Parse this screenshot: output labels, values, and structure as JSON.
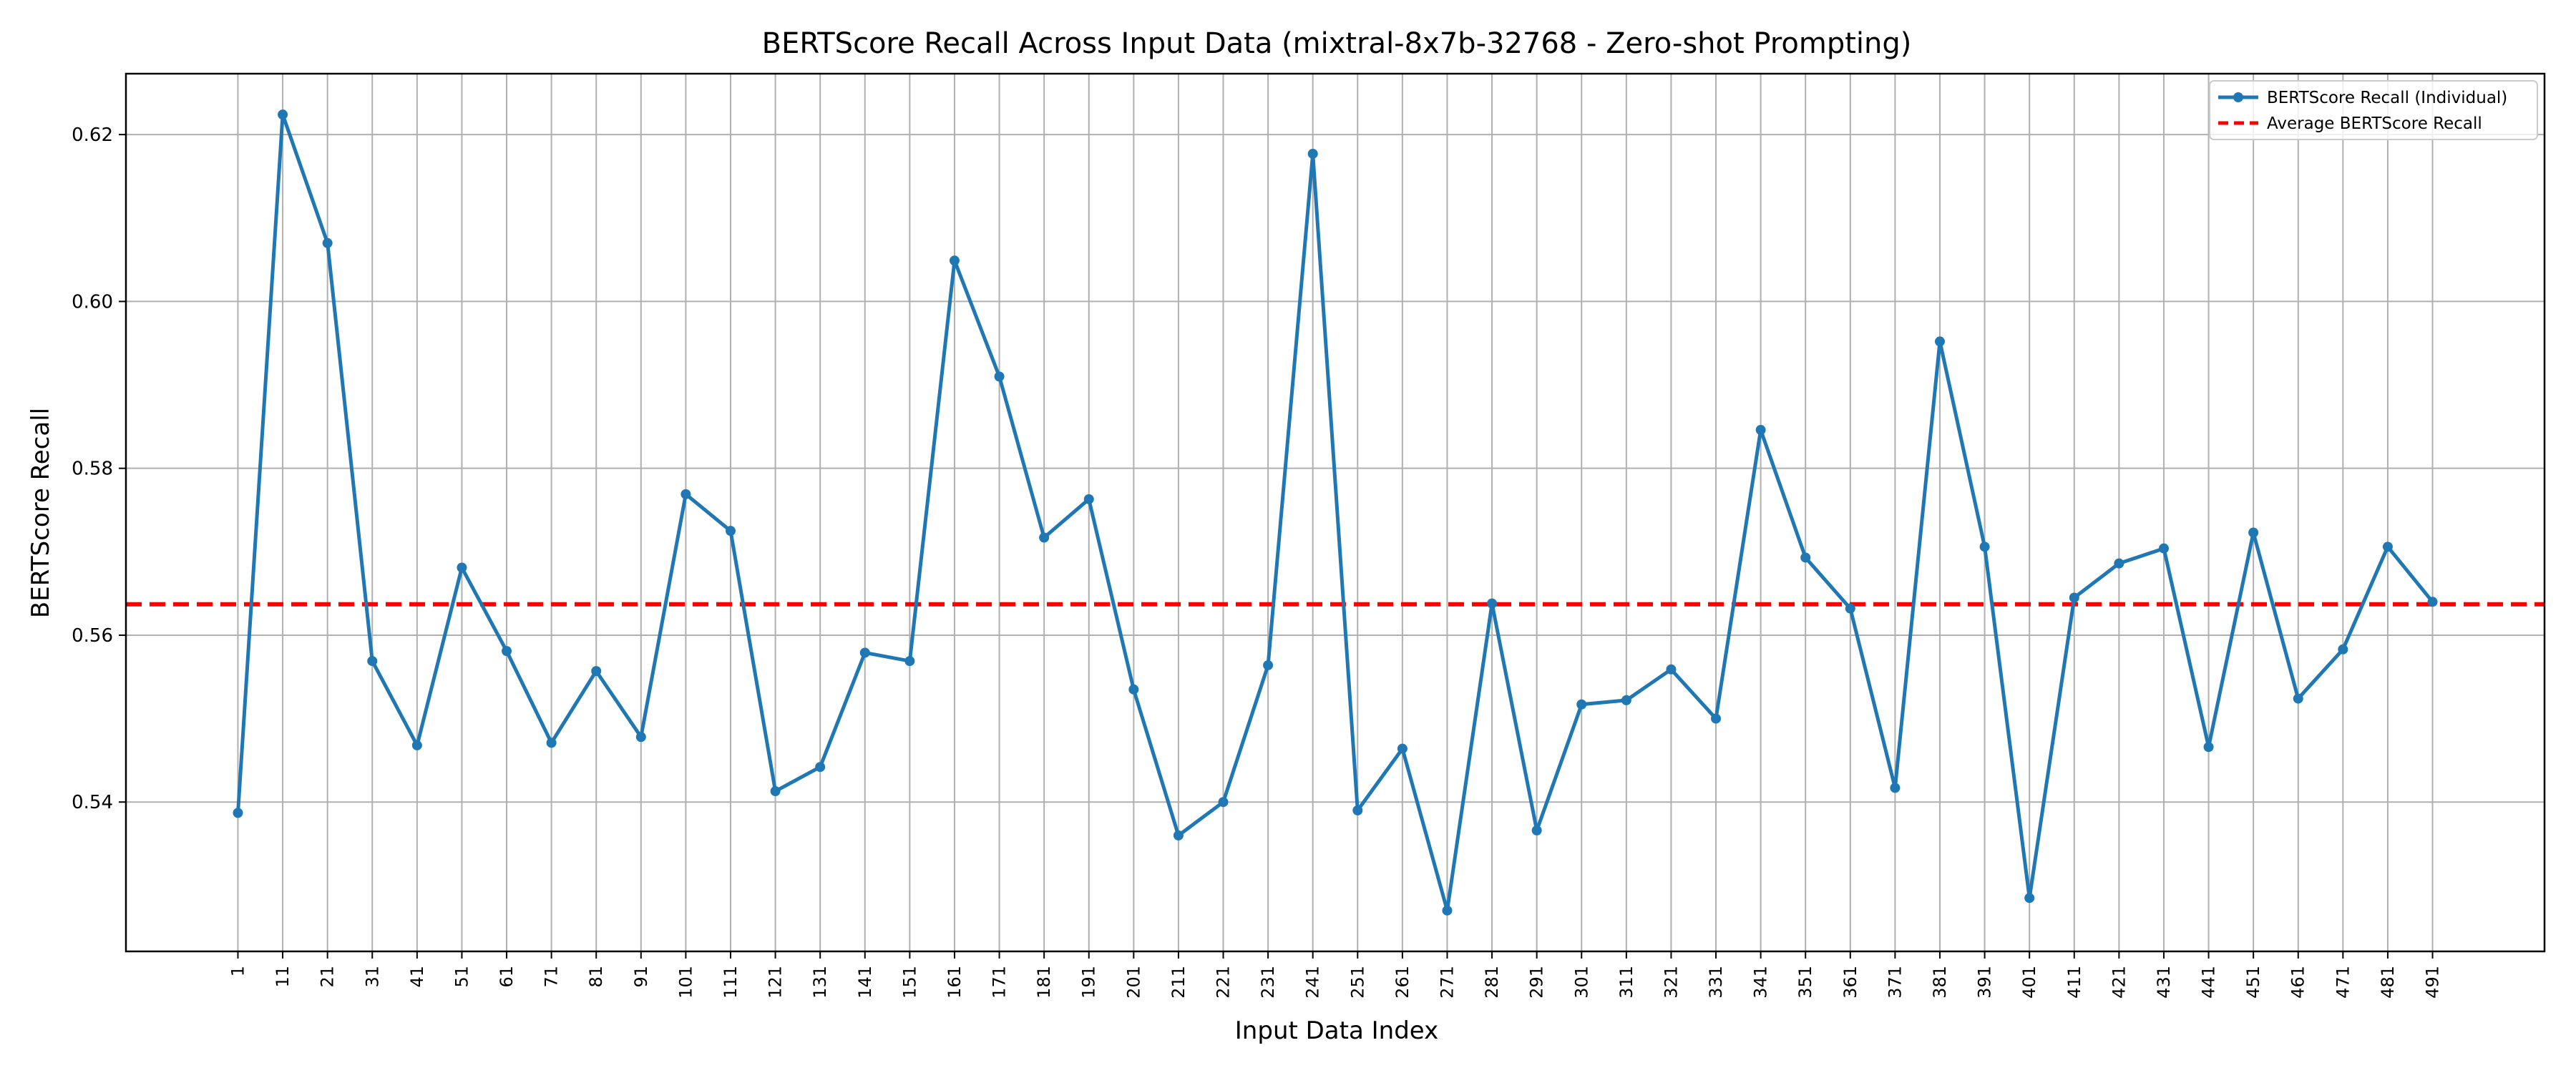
{
  "chart_data": {
    "type": "line",
    "title": "BERTScore Recall Across Input Data (mixtral-8x7b-32768 - Zero-shot Prompting)",
    "xlabel": "Input Data Index",
    "ylabel": "BERTScore Recall",
    "x": [
      1,
      11,
      21,
      31,
      41,
      51,
      61,
      71,
      81,
      91,
      101,
      111,
      121,
      131,
      141,
      151,
      161,
      171,
      181,
      191,
      201,
      211,
      221,
      231,
      241,
      251,
      261,
      271,
      281,
      291,
      301,
      311,
      321,
      331,
      341,
      351,
      361,
      371,
      381,
      391,
      401,
      411,
      421,
      431,
      441,
      451,
      461,
      471,
      481,
      491
    ],
    "xticks": [
      "1",
      "11",
      "21",
      "31",
      "41",
      "51",
      "61",
      "71",
      "81",
      "91",
      "101",
      "111",
      "121",
      "131",
      "141",
      "151",
      "161",
      "171",
      "181",
      "191",
      "201",
      "211",
      "221",
      "231",
      "241",
      "251",
      "261",
      "271",
      "281",
      "291",
      "301",
      "311",
      "321",
      "331",
      "341",
      "351",
      "361",
      "371",
      "381",
      "391",
      "401",
      "411",
      "421",
      "431",
      "441",
      "451",
      "461",
      "471",
      "481",
      "491"
    ],
    "yticks": [
      "0.54",
      "0.56",
      "0.58",
      "0.60",
      "0.62"
    ],
    "ytick_values": [
      0.54,
      0.56,
      0.58,
      0.6,
      0.62
    ],
    "xlim": [
      -24,
      516
    ],
    "ylim": [
      0.5221,
      0.6273
    ],
    "grid": true,
    "legend_position": "top-right",
    "series": [
      {
        "name": "BERTScore Recall (Individual)",
        "color": "#1f77b4",
        "style": "line-marker",
        "values": [
          0.5387,
          0.6224,
          0.607,
          0.5569,
          0.5468,
          0.5681,
          0.5581,
          0.5471,
          0.5557,
          0.5478,
          0.5769,
          0.5725,
          0.5413,
          0.5442,
          0.5579,
          0.5569,
          0.6049,
          0.591,
          0.5717,
          0.5763,
          0.5535,
          0.536,
          0.54,
          0.5564,
          0.6177,
          0.539,
          0.5464,
          0.527,
          0.5638,
          0.5366,
          0.5517,
          0.5522,
          0.5559,
          0.55,
          0.5846,
          0.5693,
          0.5632,
          0.5417,
          0.5952,
          0.5706,
          0.5285,
          0.5645,
          0.5686,
          0.5704,
          0.5466,
          0.5723,
          0.5524,
          0.5583,
          0.5706,
          0.564
        ]
      },
      {
        "name": "Average BERTScore Recall",
        "color": "#ff0000",
        "style": "dashed",
        "value": 0.5637
      }
    ]
  }
}
